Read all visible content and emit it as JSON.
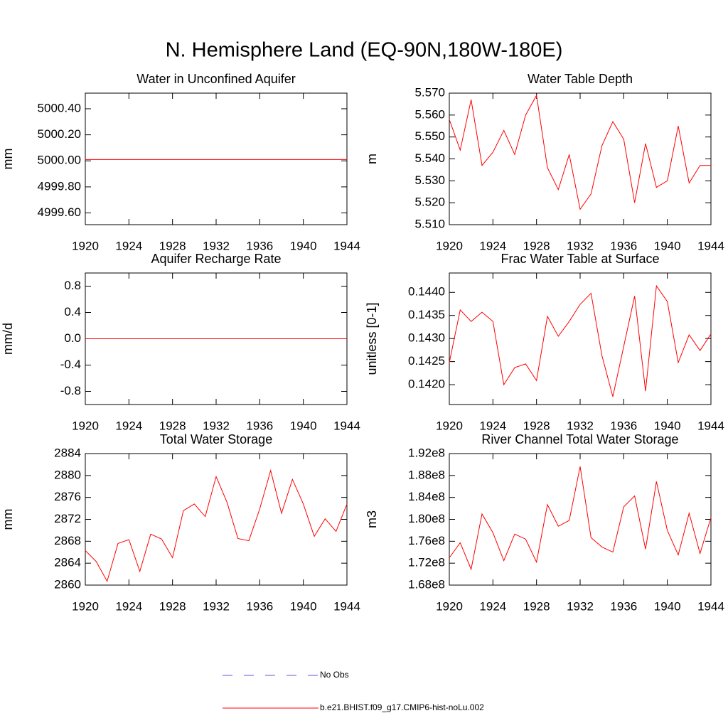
{
  "title": "N. Hemisphere Land (EQ-90N,180W-180E)",
  "legend": [
    {
      "name": "No Obs",
      "color": "#5a5adc",
      "dash": true
    },
    {
      "name": "b.e21.BHIST.f09_g17.CMIP6-hist-noLu.002",
      "color": "#ff0000",
      "dash": false
    }
  ],
  "chart_data": [
    {
      "type": "line",
      "title": "Water in Unconfined Aquifer",
      "ylabel": "mm",
      "color": "#ff0000",
      "x": [
        1920,
        1921,
        1922,
        1923,
        1924,
        1925,
        1926,
        1927,
        1928,
        1929,
        1930,
        1931,
        1932,
        1933,
        1934,
        1935,
        1936,
        1937,
        1938,
        1939,
        1940,
        1941,
        1942,
        1943,
        1944
      ],
      "values": [
        5000.01,
        5000.01,
        5000.01,
        5000.01,
        5000.01,
        5000.01,
        5000.01,
        5000.01,
        5000.01,
        5000.01,
        5000.01,
        5000.01,
        5000.01,
        5000.01,
        5000.01,
        5000.01,
        5000.01,
        5000.01,
        5000.01,
        5000.01,
        5000.01,
        5000.01,
        5000.01,
        5000.01,
        5000.01
      ],
      "xlim": [
        1920,
        1944
      ],
      "xticks": [
        1920,
        1924,
        1928,
        1932,
        1936,
        1940,
        1944
      ],
      "ylim": [
        4999.51,
        5000.52
      ],
      "yticks": [
        {
          "value": 4999.6,
          "label": "4999.60"
        },
        {
          "value": 4999.8,
          "label": "4999.80"
        },
        {
          "value": 5000,
          "label": "5000.00"
        },
        {
          "value": 5000.2,
          "label": "5000.20"
        },
        {
          "value": 5000.4,
          "label": "5000.40"
        }
      ]
    },
    {
      "type": "line",
      "title": "Water Table Depth",
      "ylabel": "m",
      "color": "#ff0000",
      "x": [
        1920,
        1921,
        1922,
        1923,
        1924,
        1925,
        1926,
        1927,
        1928,
        1929,
        1930,
        1931,
        1932,
        1933,
        1934,
        1935,
        1936,
        1937,
        1938,
        1939,
        1940,
        1941,
        1942,
        1943,
        1944
      ],
      "values": [
        5.558,
        5.544,
        5.567,
        5.537,
        5.543,
        5.553,
        5.542,
        5.56,
        5.569,
        5.536,
        5.526,
        5.542,
        5.517,
        5.524,
        5.546,
        5.557,
        5.549,
        5.52,
        5.547,
        5.527,
        5.53,
        5.555,
        5.529,
        5.537,
        5.537
      ],
      "xlim": [
        1920,
        1944
      ],
      "xticks": [
        1920,
        1924,
        1928,
        1932,
        1936,
        1940,
        1944
      ],
      "ylim": [
        5.51,
        5.57
      ],
      "yticks": [
        {
          "value": 5.51,
          "label": "5.510"
        },
        {
          "value": 5.52,
          "label": "5.520"
        },
        {
          "value": 5.53,
          "label": "5.530"
        },
        {
          "value": 5.54,
          "label": "5.540"
        },
        {
          "value": 5.55,
          "label": "5.550"
        },
        {
          "value": 5.56,
          "label": "5.560"
        },
        {
          "value": 5.57,
          "label": "5.570"
        }
      ]
    },
    {
      "type": "line",
      "title": "Aquifer Recharge Rate",
      "ylabel": "mm/d",
      "color": "#ff0000",
      "x": [
        1920,
        1921,
        1922,
        1923,
        1924,
        1925,
        1926,
        1927,
        1928,
        1929,
        1930,
        1931,
        1932,
        1933,
        1934,
        1935,
        1936,
        1937,
        1938,
        1939,
        1940,
        1941,
        1942,
        1943,
        1944
      ],
      "values": [
        0,
        0,
        0,
        0,
        0,
        0,
        0,
        0,
        0,
        0,
        0,
        0,
        0,
        0,
        0,
        0,
        0,
        0,
        0,
        0,
        0,
        0,
        0,
        0,
        0
      ],
      "xlim": [
        1920,
        1944
      ],
      "xticks": [
        1920,
        1924,
        1928,
        1932,
        1936,
        1940,
        1944
      ],
      "ylim": [
        -1,
        1
      ],
      "yticks": [
        -0.8,
        -0.4,
        {
          "value": 0,
          "label": "0.0"
        },
        0.4,
        0.8
      ]
    },
    {
      "type": "line",
      "title": "Frac Water Table at Surface",
      "ylabel": "unitless [0-1]",
      "color": "#ff0000",
      "x": [
        1920,
        1921,
        1922,
        1923,
        1924,
        1925,
        1926,
        1927,
        1928,
        1929,
        1930,
        1931,
        1932,
        1933,
        1934,
        1935,
        1936,
        1937,
        1938,
        1939,
        1940,
        1941,
        1942,
        1943,
        1944
      ],
      "values": [
        0.14248,
        0.14362,
        0.14337,
        0.14357,
        0.14337,
        0.142,
        0.14237,
        0.14245,
        0.14209,
        0.14348,
        0.14305,
        0.14337,
        0.14374,
        0.14398,
        0.14263,
        0.14174,
        0.14283,
        0.14392,
        0.14186,
        0.14414,
        0.1438,
        0.14248,
        0.14308,
        0.14274,
        0.1431
      ],
      "xlim": [
        1920,
        1944
      ],
      "xticks": [
        1920,
        1924,
        1928,
        1932,
        1936,
        1940,
        1944
      ],
      "ylim": [
        0.14157,
        0.14442
      ],
      "yticks": [
        {
          "value": 0.142,
          "label": "0.1420"
        },
        0.1425,
        {
          "value": 0.143,
          "label": "0.1430"
        },
        0.1435,
        {
          "value": 0.144,
          "label": "0.1440"
        }
      ]
    },
    {
      "type": "line",
      "title": "Total Water Storage",
      "ylabel": "mm",
      "color": "#ff0000",
      "x": [
        1920,
        1921,
        1922,
        1923,
        1924,
        1925,
        1926,
        1927,
        1928,
        1929,
        1930,
        1931,
        1932,
        1933,
        1934,
        1935,
        1936,
        1937,
        1938,
        1939,
        1940,
        1941,
        1942,
        1943,
        1944
      ],
      "values": [
        2866.3,
        2864.3,
        2860.7,
        2867.6,
        2868.3,
        2862.5,
        2869.3,
        2868.4,
        2865.0,
        2873.6,
        2874.8,
        2872.5,
        2879.8,
        2875.1,
        2868.5,
        2868.1,
        2873.9,
        2880.9,
        2873.1,
        2879.3,
        2874.8,
        2868.9,
        2872.1,
        2869.8,
        2874.8
      ],
      "xlim": [
        1920,
        1944
      ],
      "xticks": [
        1920,
        1924,
        1928,
        1932,
        1936,
        1940,
        1944
      ],
      "ylim": [
        2860,
        2884
      ],
      "yticks": [
        2860,
        2864,
        2868,
        2872,
        2876,
        2880,
        2884
      ]
    },
    {
      "type": "line",
      "title": "River Channel Total Water Storage",
      "ylabel": "m3",
      "color": "#ff0000",
      "x": [
        1920,
        1921,
        1922,
        1923,
        1924,
        1925,
        1926,
        1927,
        1928,
        1929,
        1930,
        1931,
        1932,
        1933,
        1934,
        1935,
        1936,
        1937,
        1938,
        1939,
        1940,
        1941,
        1942,
        1943,
        1944
      ],
      "values": [
        172980000,
        175740000,
        170890000,
        180980000,
        177570000,
        172460000,
        177310000,
        176390000,
        172200000,
        182690000,
        178750000,
        179800000,
        189640000,
        176660000,
        174950000,
        174030000,
        182290000,
        184260000,
        174560000,
        186890000,
        177970000,
        173510000,
        181120000,
        173770000,
        180330000
      ],
      "xlim": [
        1920,
        1944
      ],
      "xticks": [
        1920,
        1924,
        1928,
        1932,
        1936,
        1940,
        1944
      ],
      "ylim": [
        168000000,
        192000000
      ],
      "yticks": [
        {
          "value": 168000000,
          "label": "1.68e8"
        },
        {
          "value": 172000000,
          "label": "1.72e8"
        },
        {
          "value": 176000000,
          "label": "1.76e8"
        },
        {
          "value": 180000000,
          "label": "1.80e8"
        },
        {
          "value": 184000000,
          "label": "1.84e8"
        },
        {
          "value": 188000000,
          "label": "1.88e8"
        },
        {
          "value": 192000000,
          "label": "1.92e8"
        }
      ]
    }
  ]
}
